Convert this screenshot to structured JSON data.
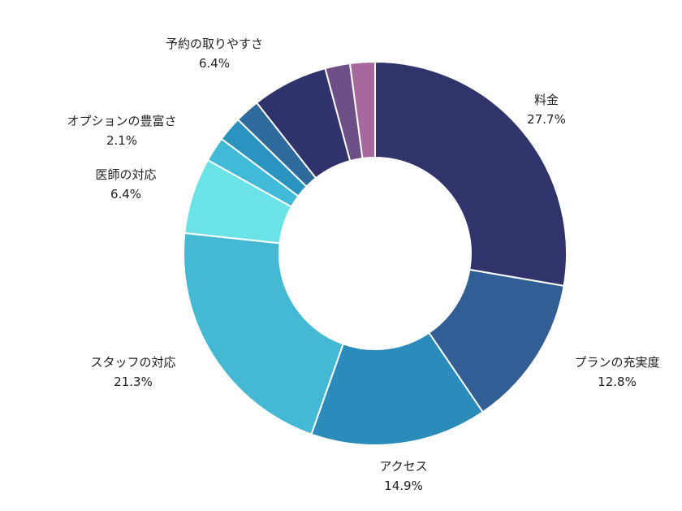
{
  "chart_data": {
    "type": "pie",
    "donut": true,
    "title": "",
    "slices": [
      {
        "label": "料金",
        "display_value": "27.7%",
        "value": 27.7,
        "color": "#31336b",
        "labeled": true
      },
      {
        "label": "プランの充実度",
        "display_value": "12.8%",
        "value": 12.8,
        "color": "#315f95",
        "labeled": true
      },
      {
        "label": "アクセス",
        "display_value": "14.9%",
        "value": 14.9,
        "color": "#2b8bbb",
        "labeled": true
      },
      {
        "label": "スタッフの対応",
        "display_value": "21.3%",
        "value": 21.3,
        "color": "#45b8d4",
        "labeled": true
      },
      {
        "label": "医師の対応",
        "display_value": "6.4%",
        "value": 6.4,
        "color": "#6be3e6",
        "labeled": true
      },
      {
        "label": "",
        "display_value": "",
        "value": 2.1,
        "color": "#41bad8",
        "labeled": false
      },
      {
        "label": "オプションの豊富さ",
        "display_value": "2.1%",
        "value": 2.1,
        "color": "#2a93bf",
        "labeled": true
      },
      {
        "label": "",
        "display_value": "",
        "value": 2.1,
        "color": "#2f6a9c",
        "labeled": false
      },
      {
        "label": "予約の取りやすさ",
        "display_value": "6.4%",
        "value": 6.4,
        "color": "#30336b",
        "labeled": true
      },
      {
        "label": "",
        "display_value": "",
        "value": 2.1,
        "color": "#6e4e86",
        "labeled": false
      },
      {
        "label": "",
        "display_value": "",
        "value": 2.1,
        "color": "#a7699d",
        "labeled": false
      }
    ]
  }
}
